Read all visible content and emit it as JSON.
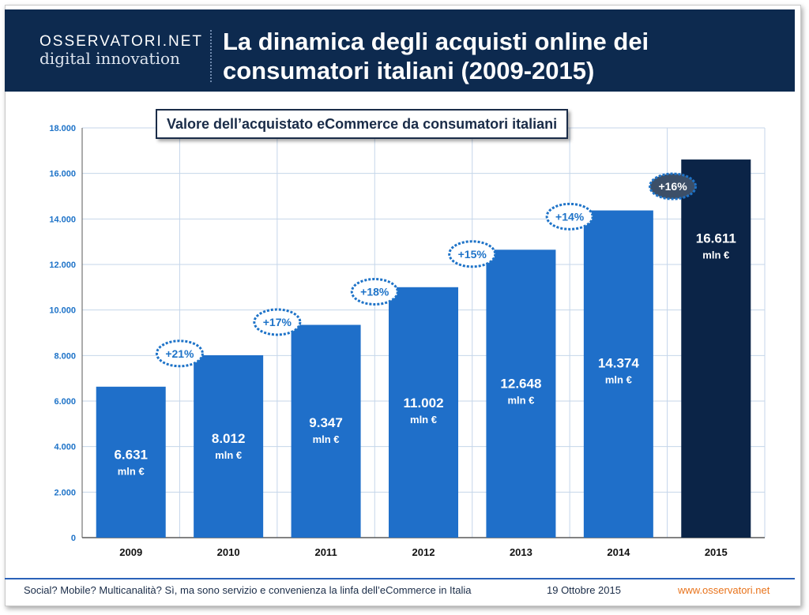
{
  "header": {
    "logo_top": "OSSERVATORI.NET",
    "logo_bottom": "digital innovation",
    "title_line1": "La dinamica degli acquisti online dei",
    "title_line2": "consumatori italiani (2009-2015)"
  },
  "footer": {
    "caption": "Social? Mobile? Multicanalità? Sì, ma sono servizio e convenienza la linfa dell’eCommerce in Italia",
    "date": "19 Ottobre 2015",
    "url": "www.osservatori.net"
  },
  "colors": {
    "header_bg": "#0d2a4f",
    "bar_blue": "#1f6fc9",
    "bar_highlight": "#0b2447",
    "tick_blue": "#1e73c8",
    "badge_blue": "#1e73c8",
    "badge_dark": "#3c4f68",
    "footer_url": "#e8731b"
  },
  "chart_data": {
    "type": "bar",
    "title": "Valore dell’acquistato eCommerce da consumatori italiani",
    "categories": [
      "2009",
      "2010",
      "2011",
      "2012",
      "2013",
      "2014",
      "2015"
    ],
    "values": [
      6631,
      8012,
      9347,
      11002,
      12648,
      14374,
      16611
    ],
    "value_labels": [
      "6.631",
      "8.012",
      "9.347",
      "11.002",
      "12.648",
      "14.374",
      "16.611"
    ],
    "unit_label": "mln €",
    "growth_labels": [
      "+21%",
      "+17%",
      "+18%",
      "+15%",
      "+14%",
      "+16%"
    ],
    "growth_categories": [
      "2010",
      "2011",
      "2012",
      "2013",
      "2014",
      "2015"
    ],
    "ylim": [
      0,
      18000
    ],
    "yticks": [
      0,
      2000,
      4000,
      6000,
      8000,
      10000,
      12000,
      14000,
      16000,
      18000
    ],
    "ytick_labels": [
      "0",
      "2.000",
      "4.000",
      "6.000",
      "8.000",
      "10.000",
      "12.000",
      "14.000",
      "16.000",
      "18.000"
    ],
    "highlight_category": "2015",
    "grid": true,
    "legend": false
  }
}
